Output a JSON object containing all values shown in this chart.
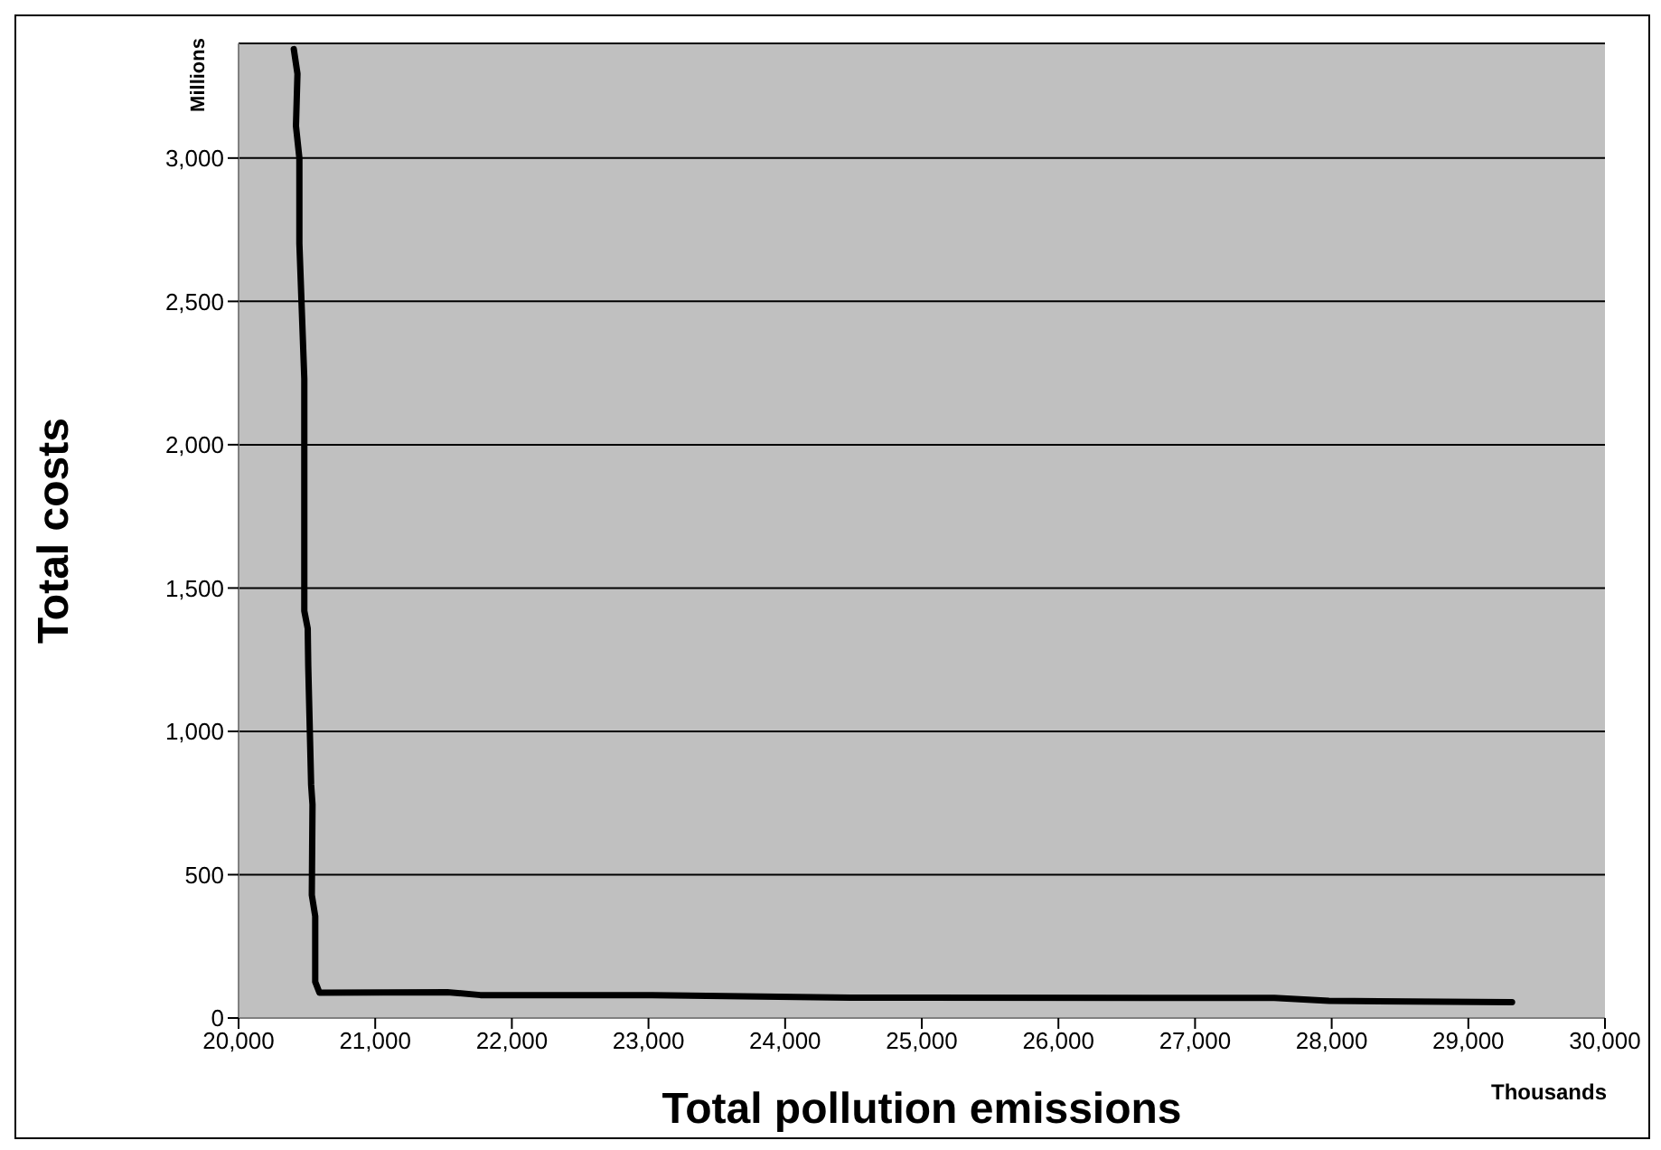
{
  "chart_data": {
    "type": "line",
    "xlabel": "Total pollution emissions",
    "ylabel": "Total costs",
    "annotations": [
      "Millions",
      "Thousands"
    ],
    "x": [
      20404,
      20431,
      20420,
      20445,
      20445,
      20481,
      20481,
      20506,
      20510,
      20531,
      20541,
      20536,
      20561,
      20561,
      20592,
      21528,
      21770,
      23025,
      24478,
      27580,
      27980,
      29320
    ],
    "series": [
      {
        "color": "#000000",
        "values": [
          3380,
          3294,
          3112,
          3000,
          2702,
          2230,
          1420,
          1359,
          1226,
          814,
          745,
          429,
          355,
          126,
          88,
          90,
          80,
          80,
          71,
          70,
          60,
          55
        ]
      }
    ],
    "xlim": [
      20000,
      30000
    ],
    "xticks": [
      {
        "value": 20000,
        "label": "20,000"
      },
      {
        "value": 21000,
        "label": "21,000"
      },
      {
        "value": 22000,
        "label": "22,000"
      },
      {
        "value": 23000,
        "label": "23,000"
      },
      {
        "value": 24000,
        "label": "24,000"
      },
      {
        "value": 25000,
        "label": "25,000"
      },
      {
        "value": 26000,
        "label": "26,000"
      },
      {
        "value": 27000,
        "label": "27,000"
      },
      {
        "value": 28000,
        "label": "28,000"
      },
      {
        "value": 29000,
        "label": "29,000"
      },
      {
        "value": 30000,
        "label": "30,000"
      }
    ],
    "ylim": [
      0,
      3400
    ],
    "yticks": [
      0,
      500,
      {
        "value": 1000,
        "label": "1,000"
      },
      {
        "value": 1500,
        "label": "1,500"
      },
      {
        "value": 2000,
        "label": "2,000"
      },
      {
        "value": 2500,
        "label": "2,500"
      },
      {
        "value": 3000,
        "label": "3,000"
      }
    ],
    "grid": "y",
    "legend": false,
    "marker": "none",
    "line_style": "solid"
  }
}
